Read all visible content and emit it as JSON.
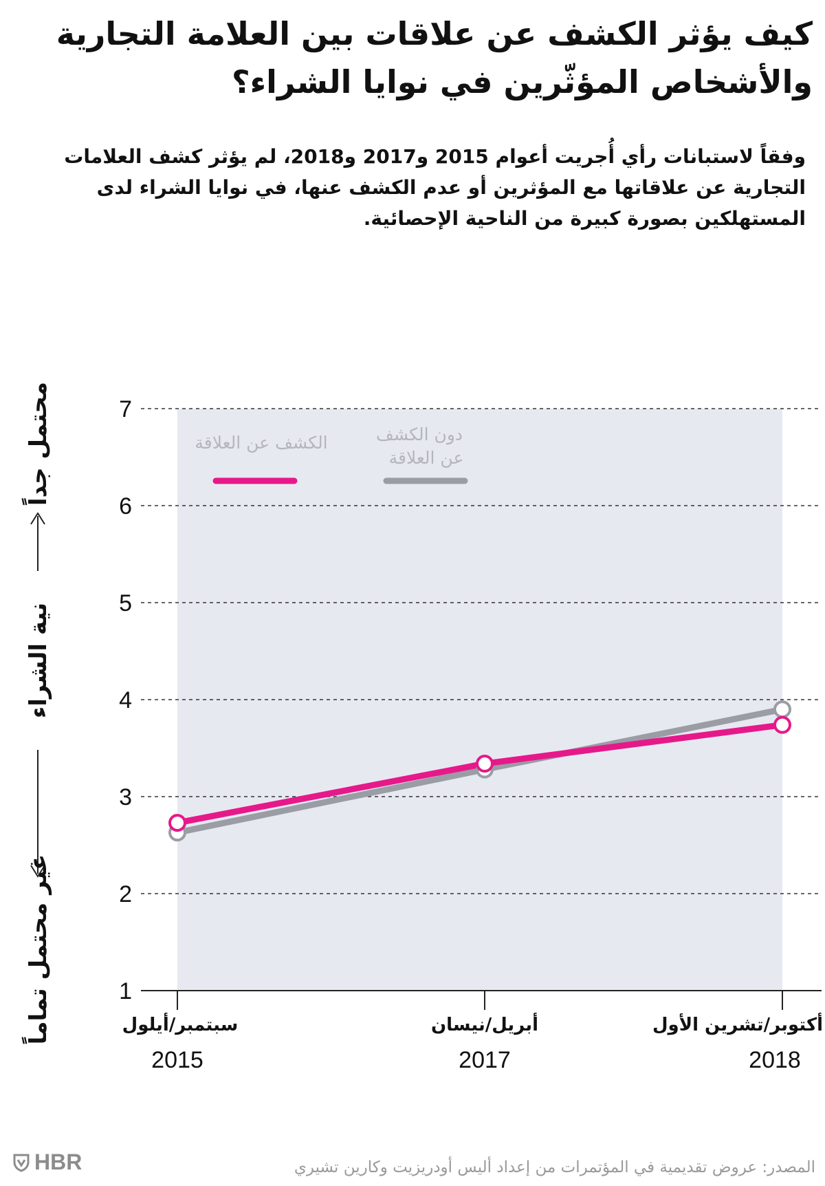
{
  "header": {
    "title": "كيف يؤثر الكشف عن علاقات بين العلامة التجارية والأشخاص المؤثّرين في نوايا الشراء؟",
    "subtitle": "وفقاً لاستبانات رأي أُجريت أعوام 2015 و2017 و2018، لم يؤثر كشف العلامات التجارية عن علاقاتها مع المؤثرين أو عدم الكشف عنها، في نوايا الشراء لدى المستهلكين بصورة كبيرة من الناحية الإحصائية."
  },
  "chart_data": {
    "type": "line",
    "categories": [
      "سبتمبر/أيلول 2015",
      "أبريل/نيسان 2017",
      "أكتوبر/تشرين الأول 2018"
    ],
    "x_labels": [
      {
        "month": "سبتمبر/أيلول",
        "year": "2015"
      },
      {
        "month": "أبريل/نيسان",
        "year": "2017"
      },
      {
        "month": "أكتوبر/تشرين الأول",
        "year": "2018"
      }
    ],
    "series": [
      {
        "name": "دون الكشف عن العلاقة",
        "color": "#9a9ea4",
        "values": [
          2.63,
          3.28,
          3.9
        ]
      },
      {
        "name": "الكشف عن العلاقة",
        "color": "#e6198a",
        "values": [
          2.73,
          3.34,
          3.74
        ]
      }
    ],
    "ylim": [
      1,
      7
    ],
    "yticks": [
      "1",
      "2",
      "3",
      "4",
      "5",
      "6",
      "7"
    ],
    "ylabel": "نية الشراء",
    "ylabel_top": "محتمل جداً",
    "ylabel_bottom": "غير محتمل تماماً",
    "legend_series": [
      "دون الكشف",
      "عن العلاقة",
      "الكشف عن العلاقة"
    ],
    "legend_placement": "top-left",
    "grid": true,
    "plot_background": "#e7e9f1"
  },
  "footer": {
    "source": "المصدر: عروض تقديمية في المؤتمرات من إعداد أليس أودريزيت وكارين تشيري",
    "brand": "HBR"
  }
}
